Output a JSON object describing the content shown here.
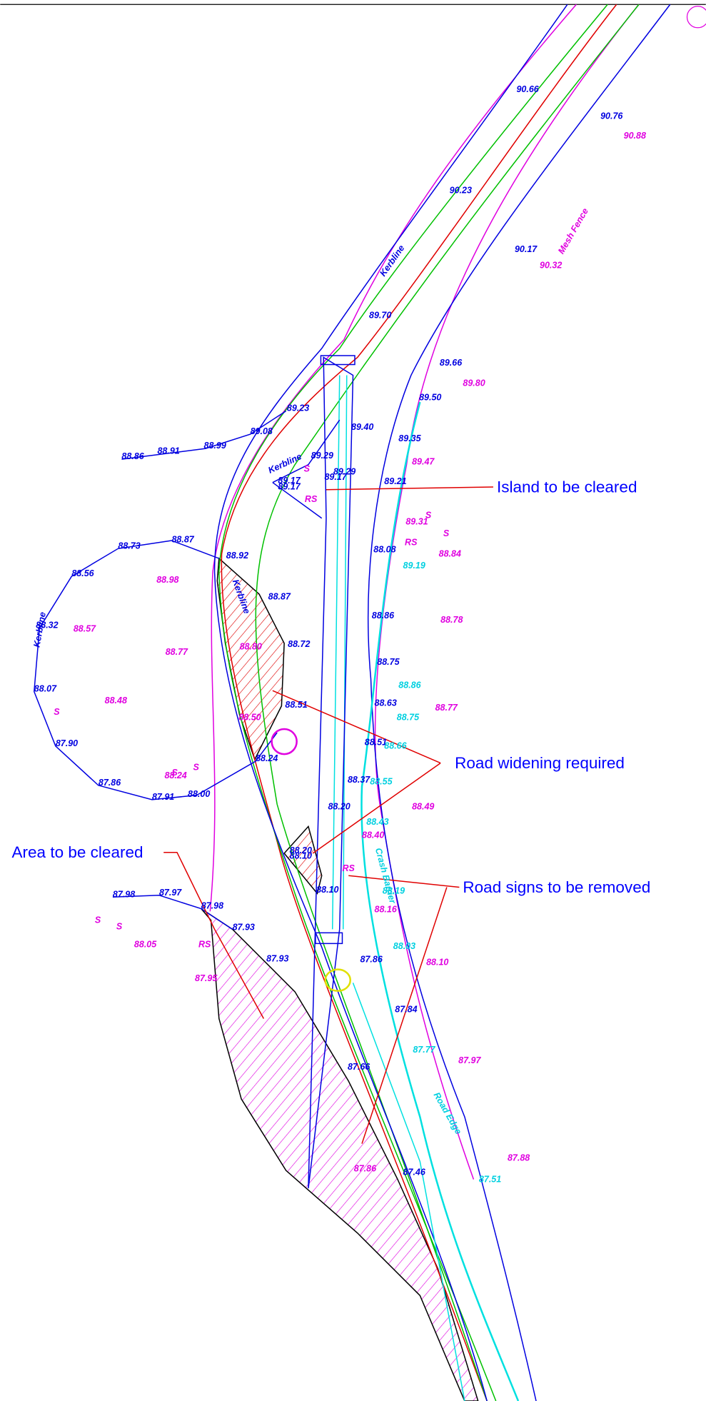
{
  "annotations": [
    "Island to be cleared",
    "Road widening required",
    "Area to be cleared",
    "Road signs to be removed"
  ],
  "features": [
    "Kerbline",
    "Mesh Fence",
    "Road Edge",
    "Crash Barrier",
    "Kerbline",
    "Kerbline",
    "Kerbline"
  ],
  "symbols": [
    "RS",
    "RS",
    "RS",
    "RS",
    "S",
    "S",
    "S",
    "S",
    "S",
    "S",
    "S",
    "S"
  ],
  "levels": {
    "blue": [
      "90.66",
      "90.76",
      "90.23",
      "90.17",
      "89.70",
      "89.66",
      "89.50",
      "89.23",
      "89.35",
      "88.99",
      "88.91",
      "88.86",
      "89.08",
      "89.29",
      "89.21",
      "89.29",
      "89.17",
      "89.17",
      "88.87",
      "88.73",
      "88.92",
      "88.56",
      "88.08",
      "88.87",
      "88.86",
      "88.72",
      "88.32",
      "88.75",
      "88.07",
      "88.63",
      "88.51",
      "88.51",
      "87.90",
      "88.24",
      "88.37",
      "87.86",
      "87.91",
      "88.00",
      "88.20",
      "88.20",
      "88.10",
      "88.10",
      "87.98",
      "87.97",
      "87.98",
      "87.93",
      "87.93",
      "87.86",
      "87.84",
      "87.66",
      "87.46",
      "89.40",
      "89.17"
    ],
    "magenta": [
      "90.88",
      "90.32",
      "89.80",
      "89.47",
      "89.31",
      "88.84",
      "88.98",
      "88.78",
      "88.57",
      "88.77",
      "88.80",
      "88.48",
      "88.77",
      "88.50",
      "88.24",
      "88.49",
      "88.40",
      "88.16",
      "88.05",
      "88.10",
      "87.95",
      "87.97",
      "87.88",
      "87.86"
    ],
    "cyan": [
      "89.19",
      "88.86",
      "88.75",
      "88.66",
      "88.55",
      "88.43",
      "88.19",
      "88.03",
      "87.77",
      "87.51"
    ]
  }
}
